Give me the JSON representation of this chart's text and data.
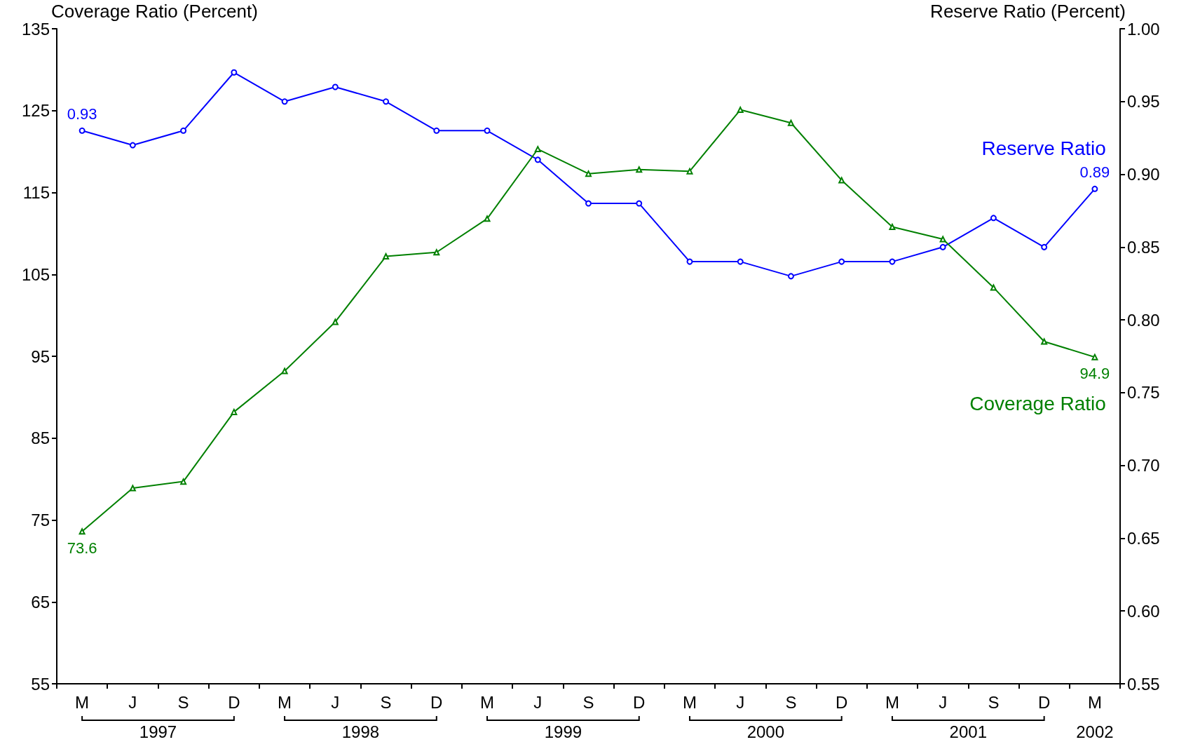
{
  "chart_data": {
    "type": "line",
    "ylabel": "Coverage Ratio (Percent)",
    "y2label": "Reserve Ratio (Percent)",
    "categories": [
      "M",
      "J",
      "S",
      "D",
      "M",
      "J",
      "S",
      "D",
      "M",
      "J",
      "S",
      "D",
      "M",
      "J",
      "S",
      "D",
      "M",
      "J",
      "S",
      "D",
      "M"
    ],
    "annotations": [
      "1997",
      "1998",
      "1999",
      "2000",
      "2001",
      "2002"
    ],
    "series": [
      {
        "name": "Reserve Ratio",
        "color": "#0000ff",
        "axis": "y2",
        "marker": "circle",
        "values": [
          0.93,
          0.92,
          0.93,
          0.97,
          0.95,
          0.96,
          0.95,
          0.93,
          0.93,
          0.91,
          0.88,
          0.88,
          0.84,
          0.84,
          0.83,
          0.84,
          0.84,
          0.85,
          0.87,
          0.85,
          0.89
        ],
        "value_labels": [
          "0.93",
          null,
          null,
          null,
          null,
          null,
          null,
          null,
          null,
          null,
          null,
          null,
          null,
          null,
          null,
          null,
          null,
          null,
          null,
          null,
          "0.89"
        ]
      },
      {
        "name": "Coverage Ratio",
        "color": "#008000",
        "marker": "triangle",
        "values": [
          73.6,
          78.9,
          79.7,
          88.2,
          93.2,
          99.2,
          107.2,
          107.7,
          111.8,
          120.3,
          117.3,
          117.8,
          117.6,
          125.1,
          123.5,
          116.5,
          110.8,
          109.3,
          103.4,
          96.8,
          94.9
        ],
        "value_labels": [
          "73.6",
          null,
          null,
          null,
          null,
          null,
          null,
          null,
          null,
          null,
          null,
          null,
          null,
          null,
          null,
          null,
          null,
          null,
          null,
          null,
          "94.9"
        ]
      }
    ],
    "ylim": [
      55,
      135
    ],
    "yticks": [
      55,
      65,
      75,
      85,
      95,
      105,
      115,
      125,
      135
    ],
    "y2lim": [
      0.55,
      1.0
    ],
    "y2ticks": [
      0.55,
      {
        "value": 0.6,
        "label": "0.60"
      },
      0.65,
      {
        "value": 0.7,
        "label": "0.70"
      },
      0.75,
      {
        "value": 0.8,
        "label": "0.80"
      },
      0.85,
      {
        "value": 0.9,
        "label": "0.90"
      },
      0.95,
      {
        "value": 1,
        "label": "1.00"
      }
    ],
    "grid": false,
    "legend": false,
    "line_style": "solid"
  }
}
